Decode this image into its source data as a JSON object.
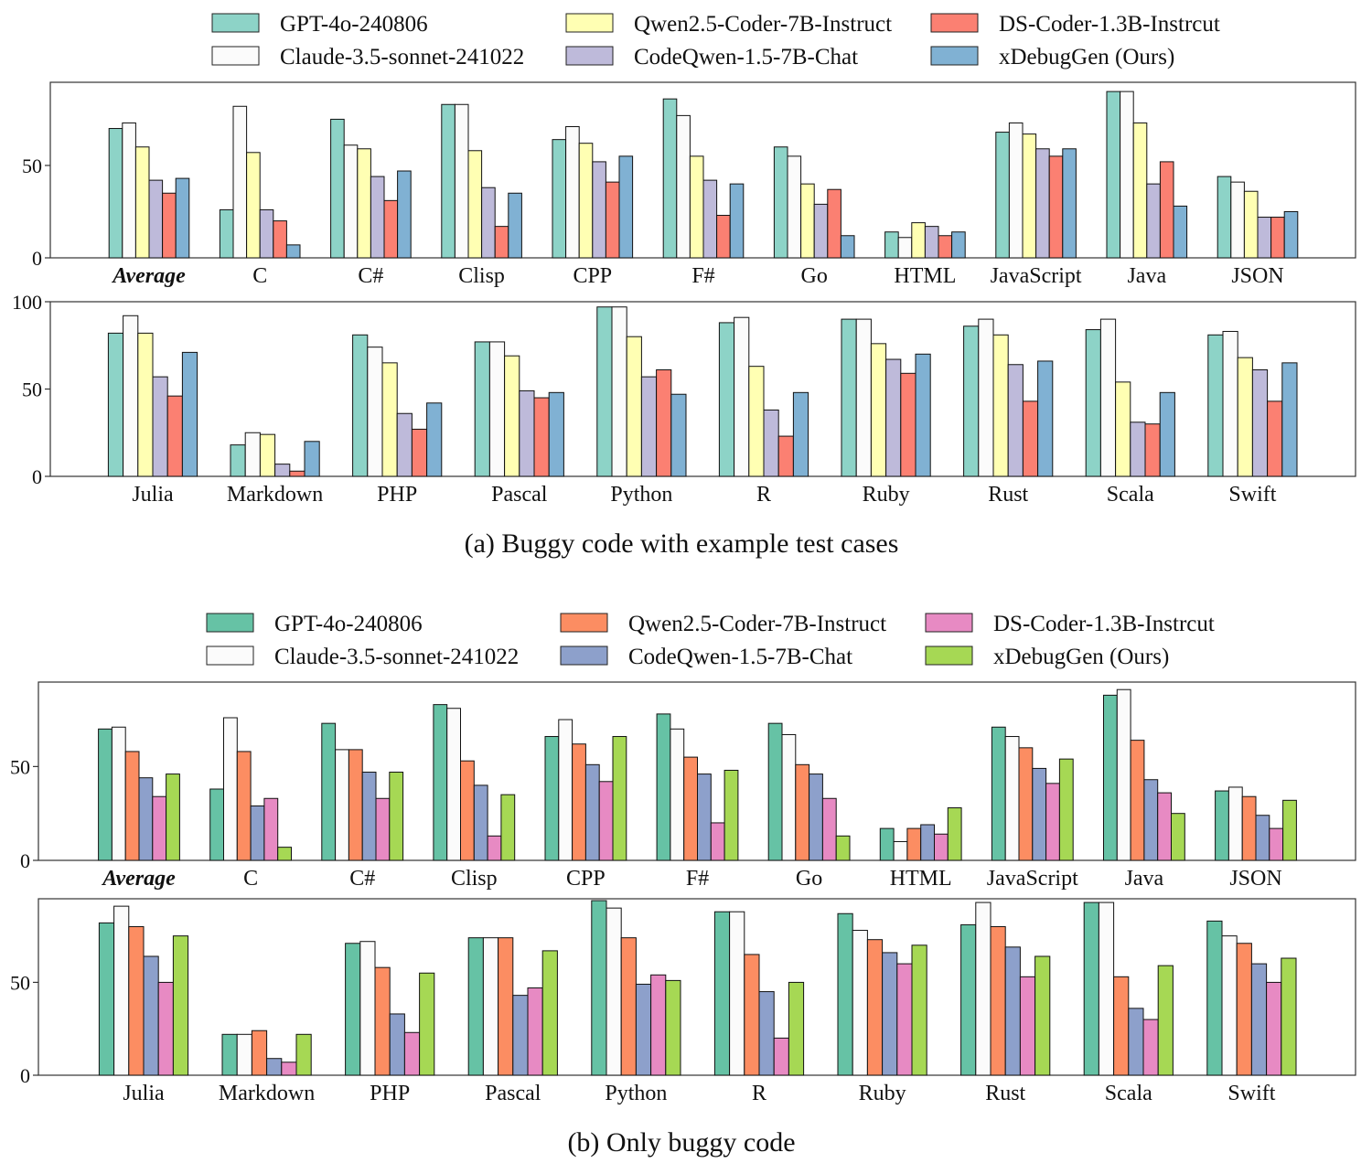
{
  "figure_a": {
    "caption": "(a)  Buggy code with example test cases",
    "legend": [
      {
        "label": "GPT-4o-240806",
        "color": "#8dd3c7"
      },
      {
        "label": "Claude-3.5-sonnet-241022",
        "color": "#fbfbfb"
      },
      {
        "label": "Qwen2.5-Coder-7B-Instruct",
        "color": "#ffffb3"
      },
      {
        "label": "CodeQwen-1.5-7B-Chat",
        "color": "#bebada"
      },
      {
        "label": "DS-Coder-1.3B-Instrcut",
        "color": "#fb8072"
      },
      {
        "label": "xDebugGen (Ours)",
        "color": "#80b1d3"
      }
    ]
  },
  "figure_b": {
    "caption": "(b)  Only buggy code",
    "legend": [
      {
        "label": "GPT-4o-240806",
        "color": "#66c2a5"
      },
      {
        "label": "Claude-3.5-sonnet-241022",
        "color": "#fbfbfb"
      },
      {
        "label": "Qwen2.5-Coder-7B-Instruct",
        "color": "#fc8d62"
      },
      {
        "label": "CodeQwen-1.5-7B-Chat",
        "color": "#8da0cb"
      },
      {
        "label": "DS-Coder-1.3B-Instrcut",
        "color": "#e78ac3"
      },
      {
        "label": "xDebugGen (Ours)",
        "color": "#a6d854"
      }
    ]
  },
  "chart_data": [
    {
      "type": "bar",
      "figure": "a",
      "panel": "top",
      "categories": [
        "Average",
        "C",
        "C#",
        "Clisp",
        "CPP",
        "F#",
        "Go",
        "HTML",
        "JavaScript",
        "Java",
        "JSON"
      ],
      "bold_italic_categories": [
        "Average"
      ],
      "ylim": [
        0,
        95
      ],
      "yticks": [
        0,
        50
      ],
      "series": [
        {
          "name": "GPT-4o-240806",
          "values": [
            70,
            26,
            75,
            83,
            64,
            86,
            60,
            14,
            68,
            90,
            44
          ]
        },
        {
          "name": "Claude-3.5-sonnet-241022",
          "values": [
            73,
            82,
            61,
            83,
            71,
            77,
            55,
            11,
            73,
            90,
            41
          ]
        },
        {
          "name": "Qwen2.5-Coder-7B-Instruct",
          "values": [
            60,
            57,
            59,
            58,
            62,
            55,
            40,
            19,
            67,
            73,
            36
          ]
        },
        {
          "name": "CodeQwen-1.5-7B-Chat",
          "values": [
            42,
            26,
            44,
            38,
            52,
            42,
            29,
            17,
            59,
            40,
            22
          ]
        },
        {
          "name": "DS-Coder-1.3B-Instrcut",
          "values": [
            35,
            20,
            31,
            17,
            41,
            23,
            37,
            12,
            55,
            52,
            22
          ]
        },
        {
          "name": "xDebugGen (Ours)",
          "values": [
            43,
            7,
            47,
            35,
            55,
            40,
            12,
            14,
            59,
            28,
            25
          ]
        }
      ]
    },
    {
      "type": "bar",
      "figure": "a",
      "panel": "bottom",
      "categories": [
        "Julia",
        "Markdown",
        "PHP",
        "Pascal",
        "Python",
        "R",
        "Ruby",
        "Rust",
        "Scala",
        "Swift"
      ],
      "ylim": [
        0,
        100
      ],
      "yticks": [
        0,
        50,
        100
      ],
      "series": [
        {
          "name": "GPT-4o-240806",
          "values": [
            82,
            18,
            81,
            77,
            97,
            88,
            90,
            86,
            84,
            81
          ]
        },
        {
          "name": "Claude-3.5-sonnet-241022",
          "values": [
            92,
            25,
            74,
            77,
            97,
            91,
            90,
            90,
            90,
            83
          ]
        },
        {
          "name": "Qwen2.5-Coder-7B-Instruct",
          "values": [
            82,
            24,
            65,
            69,
            80,
            63,
            76,
            81,
            54,
            68
          ]
        },
        {
          "name": "CodeQwen-1.5-7B-Chat",
          "values": [
            57,
            7,
            36,
            49,
            57,
            38,
            67,
            64,
            31,
            61
          ]
        },
        {
          "name": "DS-Coder-1.3B-Instrcut",
          "values": [
            46,
            3,
            27,
            45,
            61,
            23,
            59,
            43,
            30,
            43
          ]
        },
        {
          "name": "xDebugGen (Ours)",
          "values": [
            71,
            20,
            42,
            48,
            47,
            48,
            70,
            66,
            48,
            65
          ]
        }
      ]
    },
    {
      "type": "bar",
      "figure": "b",
      "panel": "top",
      "categories": [
        "Average",
        "C",
        "C#",
        "Clisp",
        "CPP",
        "F#",
        "Go",
        "HTML",
        "JavaScript",
        "Java",
        "JSON"
      ],
      "bold_italic_categories": [
        "Average"
      ],
      "ylim": [
        0,
        95
      ],
      "yticks": [
        0,
        50
      ],
      "series": [
        {
          "name": "GPT-4o-240806",
          "values": [
            70,
            38,
            73,
            83,
            66,
            78,
            73,
            17,
            71,
            88,
            37
          ]
        },
        {
          "name": "Claude-3.5-sonnet-241022",
          "values": [
            71,
            76,
            59,
            81,
            75,
            70,
            67,
            10,
            66,
            91,
            39
          ]
        },
        {
          "name": "Qwen2.5-Coder-7B-Instruct",
          "values": [
            58,
            58,
            59,
            53,
            62,
            55,
            51,
            17,
            60,
            64,
            34
          ]
        },
        {
          "name": "CodeQwen-1.5-7B-Chat",
          "values": [
            44,
            29,
            47,
            40,
            51,
            46,
            46,
            19,
            49,
            43,
            24
          ]
        },
        {
          "name": "DS-Coder-1.3B-Instrcut",
          "values": [
            34,
            33,
            33,
            13,
            42,
            20,
            33,
            14,
            41,
            36,
            17
          ]
        },
        {
          "name": "xDebugGen (Ours)",
          "values": [
            46,
            7,
            47,
            35,
            66,
            48,
            13,
            28,
            54,
            25,
            32
          ]
        }
      ]
    },
    {
      "type": "bar",
      "figure": "b",
      "panel": "bottom",
      "categories": [
        "Julia",
        "Markdown",
        "PHP",
        "Pascal",
        "Python",
        "R",
        "Ruby",
        "Rust",
        "Scala",
        "Swift"
      ],
      "ylim": [
        0,
        95
      ],
      "yticks": [
        0,
        50
      ],
      "series": [
        {
          "name": "GPT-4o-240806",
          "values": [
            82,
            22,
            71,
            74,
            94,
            88,
            87,
            81,
            93,
            83
          ]
        },
        {
          "name": "Claude-3.5-sonnet-241022",
          "values": [
            91,
            22,
            72,
            74,
            90,
            88,
            78,
            93,
            93,
            75
          ]
        },
        {
          "name": "Qwen2.5-Coder-7B-Instruct",
          "values": [
            80,
            24,
            58,
            74,
            74,
            65,
            73,
            80,
            53,
            71
          ]
        },
        {
          "name": "CodeQwen-1.5-7B-Chat",
          "values": [
            64,
            9,
            33,
            43,
            49,
            45,
            66,
            69,
            36,
            60
          ]
        },
        {
          "name": "DS-Coder-1.3B-Instrcut",
          "values": [
            50,
            7,
            23,
            47,
            54,
            20,
            60,
            53,
            30,
            50
          ]
        },
        {
          "name": "xDebugGen (Ours)",
          "values": [
            75,
            22,
            55,
            67,
            51,
            50,
            70,
            64,
            59,
            63
          ]
        }
      ]
    }
  ]
}
